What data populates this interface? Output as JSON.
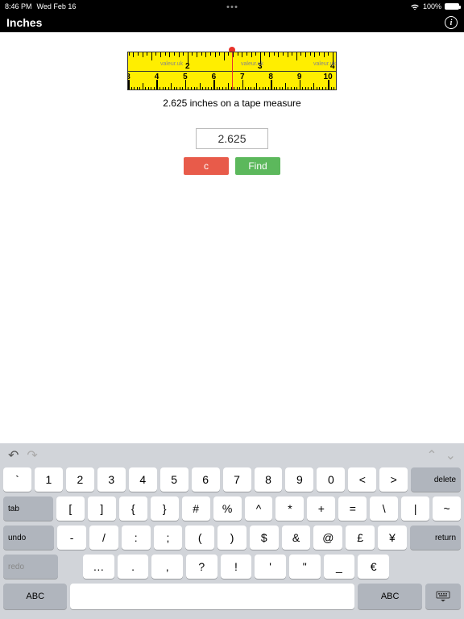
{
  "status": {
    "time": "8:46 PM",
    "date": "Wed Feb 16",
    "battery_pct": "100%"
  },
  "nav": {
    "title": "Inches"
  },
  "ruler": {
    "caption": "2.625 inches on a tape measure",
    "top_numbers": [
      "1",
      "2",
      "3"
    ],
    "bot_numbers": [
      "4",
      "5",
      "6",
      "7",
      "8"
    ],
    "watermark": "valeur.uk",
    "colors": {
      "bg": "#ffee00",
      "marker": "#e8332c"
    }
  },
  "form": {
    "value": "2.625",
    "clear_label": "c",
    "find_label": "Find"
  },
  "keyboard": {
    "row1": [
      "`",
      "1",
      "2",
      "3",
      "4",
      "5",
      "6",
      "7",
      "8",
      "9",
      "0",
      "<",
      ">"
    ],
    "delete": "delete",
    "row2_lead": "tab",
    "row2": [
      "[",
      "]",
      "{",
      "}",
      "#",
      "%",
      "^",
      "*",
      "+",
      "=",
      "\\",
      "|",
      "~"
    ],
    "row3_lead": "undo",
    "row3": [
      "-",
      "/",
      ":",
      ";",
      "(",
      ")",
      "$",
      "&",
      "@",
      "£",
      "¥"
    ],
    "return": "return",
    "row4_lead": "redo",
    "row4": [
      "…",
      ".",
      ",",
      "?",
      "!",
      "'",
      "\"",
      "_",
      "€"
    ],
    "abc": "ABC"
  }
}
